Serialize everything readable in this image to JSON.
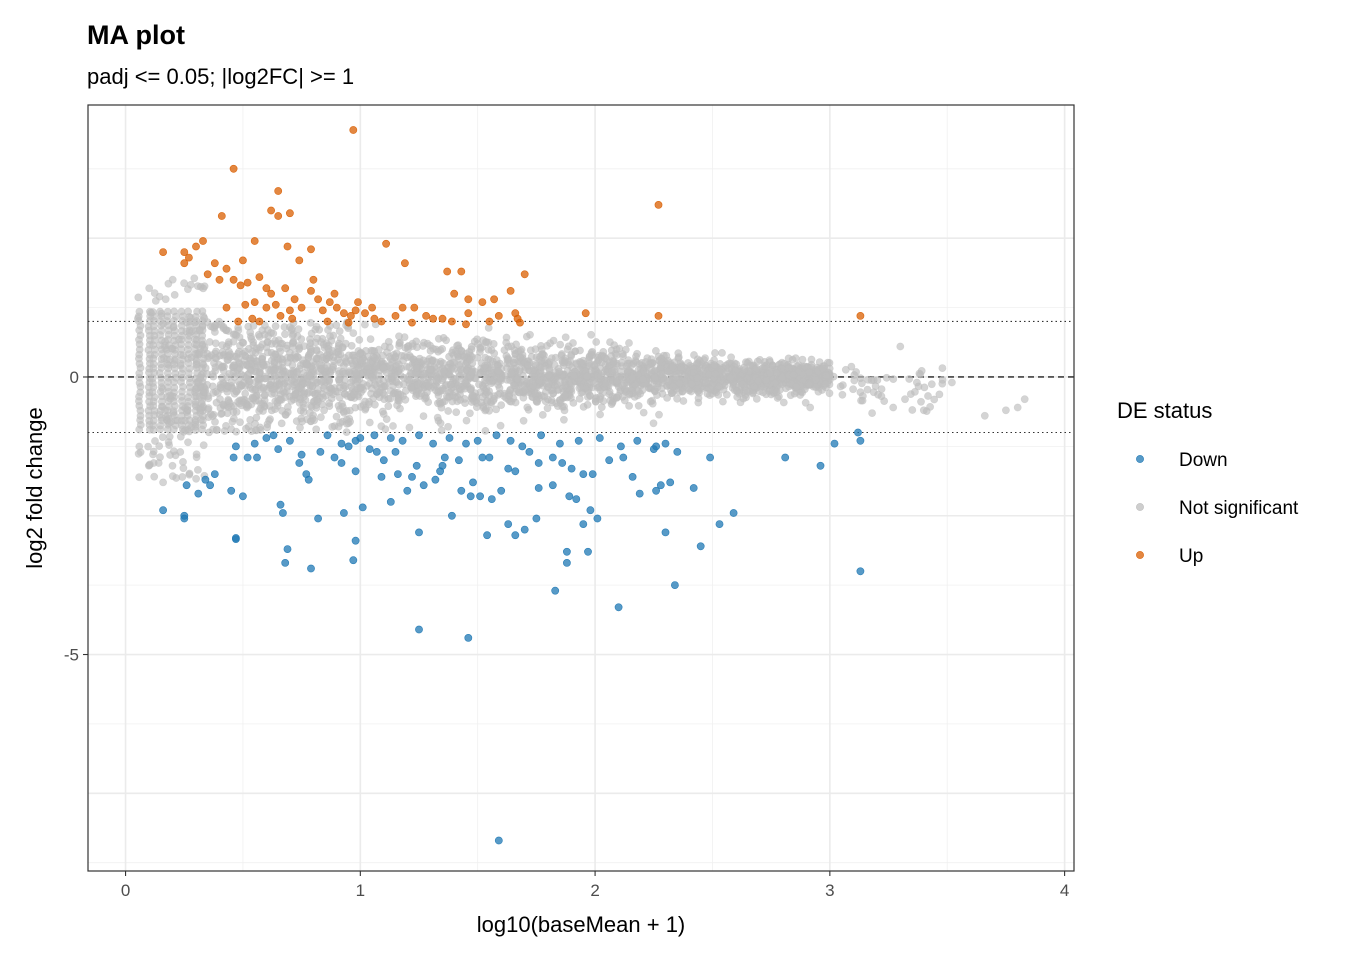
{
  "chart_data": {
    "type": "scatter",
    "title": "MA plot",
    "subtitle": "padj <= 0.05; |log2FC| >= 1",
    "xlabel": "log10(baseMean + 1)",
    "ylabel": "log2 fold change",
    "xlim": [
      -0.16,
      4.04
    ],
    "ylim": [
      -8.9,
      4.9
    ],
    "x_ticks": [
      0,
      1,
      2,
      3,
      4
    ],
    "y_ticks": [
      0,
      -5
    ],
    "x_tick_labels": [
      "0",
      "1",
      "2",
      "3",
      "4"
    ],
    "y_tick_labels": [
      "0",
      "-5"
    ],
    "grid": true,
    "hlines": [
      {
        "y": 0,
        "style": "dashed"
      },
      {
        "y": 1,
        "style": "dotted"
      },
      {
        "y": -1,
        "style": "dotted"
      }
    ],
    "legend": {
      "title": "DE status",
      "position": "right",
      "items": [
        {
          "label": "Down",
          "color": "#1f78b4"
        },
        {
          "label": "Not significant",
          "color": "#bdbdbd"
        },
        {
          "label": "Up",
          "color": "#d95f02"
        }
      ]
    },
    "series": [
      {
        "name": "Down",
        "color": "#1f78b4",
        "points": [
          [
            0.16,
            -2.4
          ],
          [
            0.25,
            -2.5
          ],
          [
            0.25,
            -2.55
          ],
          [
            0.47,
            -2.9
          ],
          [
            0.47,
            -2.92
          ],
          [
            0.69,
            -3.1
          ],
          [
            0.68,
            -3.35
          ],
          [
            0.79,
            -3.45
          ],
          [
            0.97,
            -3.3
          ],
          [
            0.98,
            -2.95
          ],
          [
            1.25,
            -4.55
          ],
          [
            1.46,
            -4.7
          ],
          [
            1.59,
            -8.35
          ],
          [
            1.83,
            -3.85
          ],
          [
            2.1,
            -4.15
          ],
          [
            2.34,
            -3.75
          ],
          [
            3.13,
            -3.5
          ],
          [
            2.96,
            -1.6
          ],
          [
            2.81,
            -1.45
          ],
          [
            3.02,
            -1.2
          ],
          [
            3.13,
            -1.15
          ],
          [
            3.12,
            -1.0
          ],
          [
            2.59,
            -2.45
          ],
          [
            2.53,
            -2.65
          ],
          [
            2.45,
            -3.05
          ],
          [
            2.3,
            -2.8
          ],
          [
            1.88,
            -3.15
          ],
          [
            1.88,
            -3.35
          ],
          [
            1.97,
            -3.15
          ],
          [
            1.54,
            -2.85
          ],
          [
            1.25,
            -2.8
          ],
          [
            1.13,
            -2.25
          ],
          [
            0.93,
            -2.45
          ],
          [
            0.66,
            -2.3
          ],
          [
            0.67,
            -2.45
          ],
          [
            0.82,
            -2.55
          ],
          [
            0.45,
            -2.05
          ],
          [
            0.5,
            -2.15
          ],
          [
            0.34,
            -1.85
          ],
          [
            0.36,
            -1.95
          ],
          [
            0.31,
            -2.1
          ],
          [
            0.26,
            -1.95
          ],
          [
            0.38,
            -1.75
          ],
          [
            0.46,
            -1.45
          ],
          [
            0.52,
            -1.45
          ],
          [
            0.56,
            -1.45
          ],
          [
            0.65,
            -1.3
          ],
          [
            0.75,
            -1.4
          ],
          [
            0.74,
            -1.55
          ],
          [
            0.77,
            -1.75
          ],
          [
            0.83,
            -1.35
          ],
          [
            0.89,
            -1.45
          ],
          [
            0.92,
            -1.55
          ],
          [
            0.98,
            -1.7
          ],
          [
            0.95,
            -1.25
          ],
          [
            0.98,
            -1.15
          ],
          [
            1.07,
            -1.35
          ],
          [
            1.1,
            -1.5
          ],
          [
            1.16,
            -1.75
          ],
          [
            1.22,
            -1.8
          ],
          [
            1.2,
            -2.05
          ],
          [
            1.27,
            -1.95
          ],
          [
            1.32,
            -1.85
          ],
          [
            1.35,
            -1.6
          ],
          [
            1.43,
            -2.05
          ],
          [
            1.48,
            -1.9
          ],
          [
            1.52,
            -1.45
          ],
          [
            1.55,
            -1.45
          ],
          [
            1.63,
            -1.65
          ],
          [
            1.66,
            -1.7
          ],
          [
            1.72,
            -1.35
          ],
          [
            1.76,
            -1.55
          ],
          [
            1.82,
            -1.45
          ],
          [
            1.86,
            -1.55
          ],
          [
            1.9,
            -1.65
          ],
          [
            1.95,
            -1.75
          ],
          [
            1.99,
            -1.75
          ],
          [
            2.06,
            -1.5
          ],
          [
            2.12,
            -1.45
          ],
          [
            2.16,
            -1.8
          ],
          [
            2.19,
            -2.1
          ],
          [
            2.26,
            -2.05
          ],
          [
            2.28,
            -1.95
          ],
          [
            2.32,
            -1.9
          ],
          [
            2.42,
            -2.0
          ],
          [
            2.49,
            -1.45
          ],
          [
            2.35,
            -1.35
          ],
          [
            2.26,
            -1.25
          ],
          [
            1.47,
            -2.15
          ],
          [
            1.6,
            -2.05
          ],
          [
            1.76,
            -2.0
          ],
          [
            1.82,
            -1.95
          ],
          [
            1.89,
            -2.15
          ],
          [
            1.92,
            -2.2
          ],
          [
            1.98,
            -2.4
          ],
          [
            2.01,
            -2.55
          ],
          [
            1.95,
            -2.65
          ],
          [
            1.75,
            -2.55
          ],
          [
            1.7,
            -2.75
          ],
          [
            1.63,
            -2.65
          ],
          [
            1.56,
            -2.2
          ],
          [
            1.51,
            -2.15
          ],
          [
            1.39,
            -2.5
          ],
          [
            1.66,
            -2.85
          ],
          [
            0.47,
            -1.25
          ],
          [
            0.55,
            -1.2
          ],
          [
            0.6,
            -1.1
          ],
          [
            0.63,
            -1.05
          ],
          [
            0.7,
            -1.15
          ],
          [
            0.86,
            -1.05
          ],
          [
            0.92,
            -1.2
          ],
          [
            1.0,
            -1.1
          ],
          [
            1.06,
            -1.05
          ],
          [
            1.13,
            -1.1
          ],
          [
            1.18,
            -1.15
          ],
          [
            1.25,
            -1.05
          ],
          [
            1.31,
            -1.2
          ],
          [
            1.38,
            -1.1
          ],
          [
            1.45,
            -1.2
          ],
          [
            1.5,
            -1.15
          ],
          [
            1.58,
            -1.05
          ],
          [
            1.64,
            -1.15
          ],
          [
            1.69,
            -1.25
          ],
          [
            1.77,
            -1.05
          ],
          [
            1.85,
            -1.2
          ],
          [
            1.93,
            -1.15
          ],
          [
            2.02,
            -1.1
          ],
          [
            2.11,
            -1.25
          ],
          [
            2.18,
            -1.15
          ],
          [
            2.25,
            -1.3
          ],
          [
            2.3,
            -1.2
          ],
          [
            1.04,
            -1.3
          ],
          [
            1.15,
            -1.35
          ],
          [
            1.36,
            -1.45
          ],
          [
            1.42,
            -1.5
          ],
          [
            1.24,
            -1.6
          ],
          [
            1.09,
            -1.8
          ],
          [
            1.34,
            -1.7
          ],
          [
            1.01,
            -2.35
          ],
          [
            0.78,
            -1.85
          ]
        ]
      },
      {
        "name": "Up",
        "color": "#d95f02",
        "points": [
          [
            0.97,
            4.45
          ],
          [
            0.46,
            3.75
          ],
          [
            0.65,
            3.35
          ],
          [
            0.62,
            3.0
          ],
          [
            0.65,
            2.9
          ],
          [
            0.7,
            2.95
          ],
          [
            0.41,
            2.9
          ],
          [
            2.27,
            3.1
          ],
          [
            0.33,
            2.45
          ],
          [
            0.3,
            2.35
          ],
          [
            0.55,
            2.45
          ],
          [
            0.69,
            2.35
          ],
          [
            0.79,
            2.3
          ],
          [
            1.11,
            2.4
          ],
          [
            1.19,
            2.05
          ],
          [
            0.74,
            2.1
          ],
          [
            0.5,
            2.1
          ],
          [
            0.43,
            1.95
          ],
          [
            0.38,
            2.05
          ],
          [
            0.16,
            2.25
          ],
          [
            0.25,
            2.25
          ],
          [
            0.25,
            2.05
          ],
          [
            0.35,
            1.85
          ],
          [
            0.4,
            1.75
          ],
          [
            0.46,
            1.75
          ],
          [
            0.49,
            1.65
          ],
          [
            0.52,
            1.7
          ],
          [
            0.6,
            1.6
          ],
          [
            0.68,
            1.6
          ],
          [
            0.8,
            1.75
          ],
          [
            0.79,
            1.55
          ],
          [
            0.82,
            1.4
          ],
          [
            0.87,
            1.35
          ],
          [
            1.37,
            1.9
          ],
          [
            1.43,
            1.9
          ],
          [
            1.7,
            1.85
          ],
          [
            1.64,
            1.55
          ],
          [
            1.57,
            1.4
          ],
          [
            1.4,
            1.5
          ],
          [
            1.46,
            1.4
          ],
          [
            1.52,
            1.35
          ],
          [
            0.55,
            1.35
          ],
          [
            0.51,
            1.3
          ],
          [
            0.6,
            1.25
          ],
          [
            0.64,
            1.3
          ],
          [
            0.7,
            1.2
          ],
          [
            0.75,
            1.25
          ],
          [
            0.84,
            1.2
          ],
          [
            0.9,
            1.25
          ],
          [
            0.93,
            1.15
          ],
          [
            0.98,
            1.2
          ],
          [
            1.02,
            1.15
          ],
          [
            1.06,
            1.05
          ],
          [
            1.15,
            1.1
          ],
          [
            1.18,
            1.25
          ],
          [
            1.23,
            1.25
          ],
          [
            1.28,
            1.1
          ],
          [
            1.35,
            1.05
          ],
          [
            1.46,
            1.15
          ],
          [
            1.59,
            1.1
          ],
          [
            1.66,
            1.15
          ],
          [
            1.55,
            1.0
          ],
          [
            1.45,
            0.95
          ],
          [
            1.39,
            1.0
          ],
          [
            1.31,
            1.05
          ],
          [
            0.48,
            1.0
          ],
          [
            0.54,
            1.05
          ],
          [
            0.57,
            1.0
          ],
          [
            0.66,
            1.1
          ],
          [
            0.71,
            1.05
          ],
          [
            0.86,
            1.0
          ],
          [
            0.95,
            0.98
          ],
          [
            1.09,
            1.0
          ],
          [
            1.22,
            0.98
          ],
          [
            1.67,
            1.05
          ],
          [
            1.96,
            1.15
          ],
          [
            2.27,
            1.1
          ],
          [
            3.13,
            1.1
          ],
          [
            1.05,
            1.25
          ],
          [
            0.99,
            1.35
          ],
          [
            0.62,
            1.5
          ],
          [
            0.43,
            1.25
          ],
          [
            1.68,
            0.98
          ],
          [
            0.72,
            1.4
          ],
          [
            0.89,
            1.5
          ],
          [
            0.57,
            1.8
          ],
          [
            0.27,
            2.15
          ],
          [
            0.96,
            1.1
          ]
        ]
      },
      {
        "name": "Not significant",
        "color": "#bdbdbd",
        "points": []
      }
    ]
  }
}
